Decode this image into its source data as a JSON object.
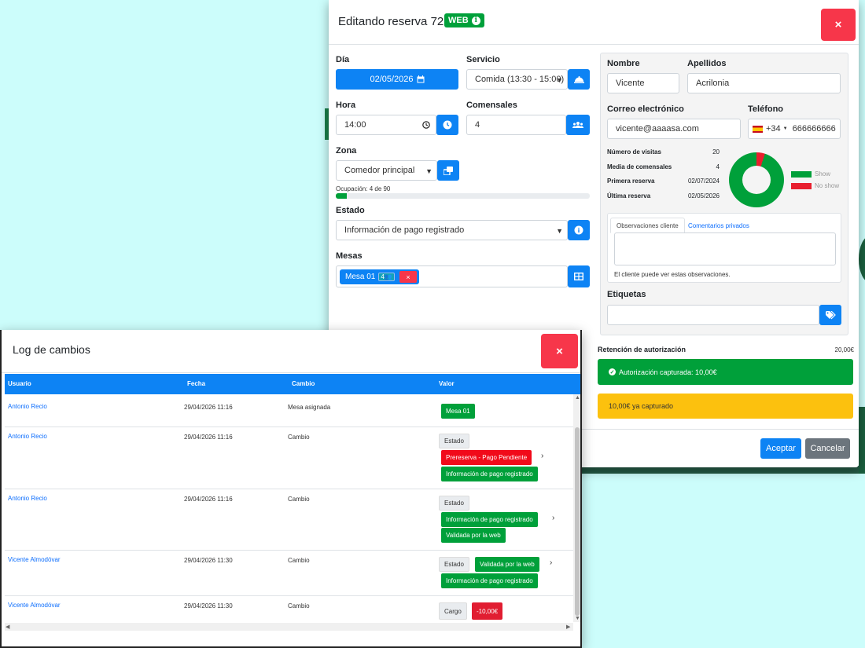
{
  "reservation": {
    "title": "Editando reserva 72957",
    "source_badge": "WEB",
    "close_label": "×",
    "dia": {
      "label": "Día",
      "value": "02/05/2026"
    },
    "servicio": {
      "label": "Servicio",
      "value": "Comida (13:30 - 15:00)"
    },
    "hora": {
      "label": "Hora",
      "value": "14:00"
    },
    "comensales": {
      "label": "Comensales",
      "value": "4"
    },
    "zona": {
      "label": "Zona",
      "value": "Comedor principal",
      "ocupacion": "Ocupación: 4 de 90",
      "ocupacion_fraction": 0.044
    },
    "estado": {
      "label": "Estado",
      "value": "Información de pago registrado"
    },
    "mesas": {
      "label": "Mesas",
      "chip_label": "Mesa 01",
      "chip_capacity": "4",
      "chip_remove": "×"
    },
    "customer": {
      "nombre_label": "Nombre",
      "nombre": "Vicente",
      "apellidos_label": "Apellidos",
      "apellidos": "Acrilonia",
      "email_label": "Correo electrónico",
      "email": "vicente@aaaasa.com",
      "telefono_label": "Teléfono",
      "prefix": "+34",
      "telefono": "666666666",
      "stats": [
        {
          "label": "Número de visitas",
          "value": "20"
        },
        {
          "label": "Media de comensales",
          "value": "4"
        },
        {
          "label": "Primera reserva",
          "value": "02/07/2024"
        },
        {
          "label": "Última reserva",
          "value": "02/05/2026"
        }
      ],
      "chart": {
        "show_label": "Show",
        "noshow_label": "No show",
        "show_color": "#00a03a",
        "noshow_color": "#e81f2e"
      },
      "tabs": [
        "Observaciones cliente",
        "Comentarios privados"
      ],
      "obs_hint": "El cliente puede ver estas observaciones.",
      "etiquetas_label": "Etiquetas"
    },
    "retencion_label": "Retención de autorización",
    "retencion_value": "20,00€",
    "autorizacion": "Autorización capturada: 10,00€",
    "capturado": "10,00€ ya capturado",
    "accept": "Aceptar",
    "cancel": "Cancelar"
  },
  "log": {
    "title": "Log de cambios",
    "close_label": "×",
    "columns": [
      "Usuario",
      "Fecha",
      "Cambio",
      "Valor"
    ],
    "rows": [
      {
        "user": "Antonio Recio",
        "date": "29/04/2026 11:16",
        "change": "Mesa asignada",
        "values": [
          "Mesa 01"
        ]
      },
      {
        "user": "Antonio Recio",
        "date": "29/04/2026 11:16",
        "change": "Cambio",
        "field": "Estado",
        "from": "Prereserva - Pago Pendiente",
        "to": "Información de pago registrado"
      },
      {
        "user": "Antonio Recio",
        "date": "29/04/2026 11:16",
        "change": "Cambio",
        "field": "Estado",
        "from": "Información de pago registrado",
        "to": "Validada por la web"
      },
      {
        "user": "Vicente Almodóvar",
        "date": "29/04/2026 11:30",
        "change": "Cambio",
        "field": "Estado",
        "from": "Validada por la web",
        "to": "Información de pago registrado"
      },
      {
        "user": "Vicente Almodóvar",
        "date": "29/04/2026 11:30",
        "change": "Cambio",
        "field": "Cargo",
        "amount": "-10,00€"
      }
    ]
  }
}
